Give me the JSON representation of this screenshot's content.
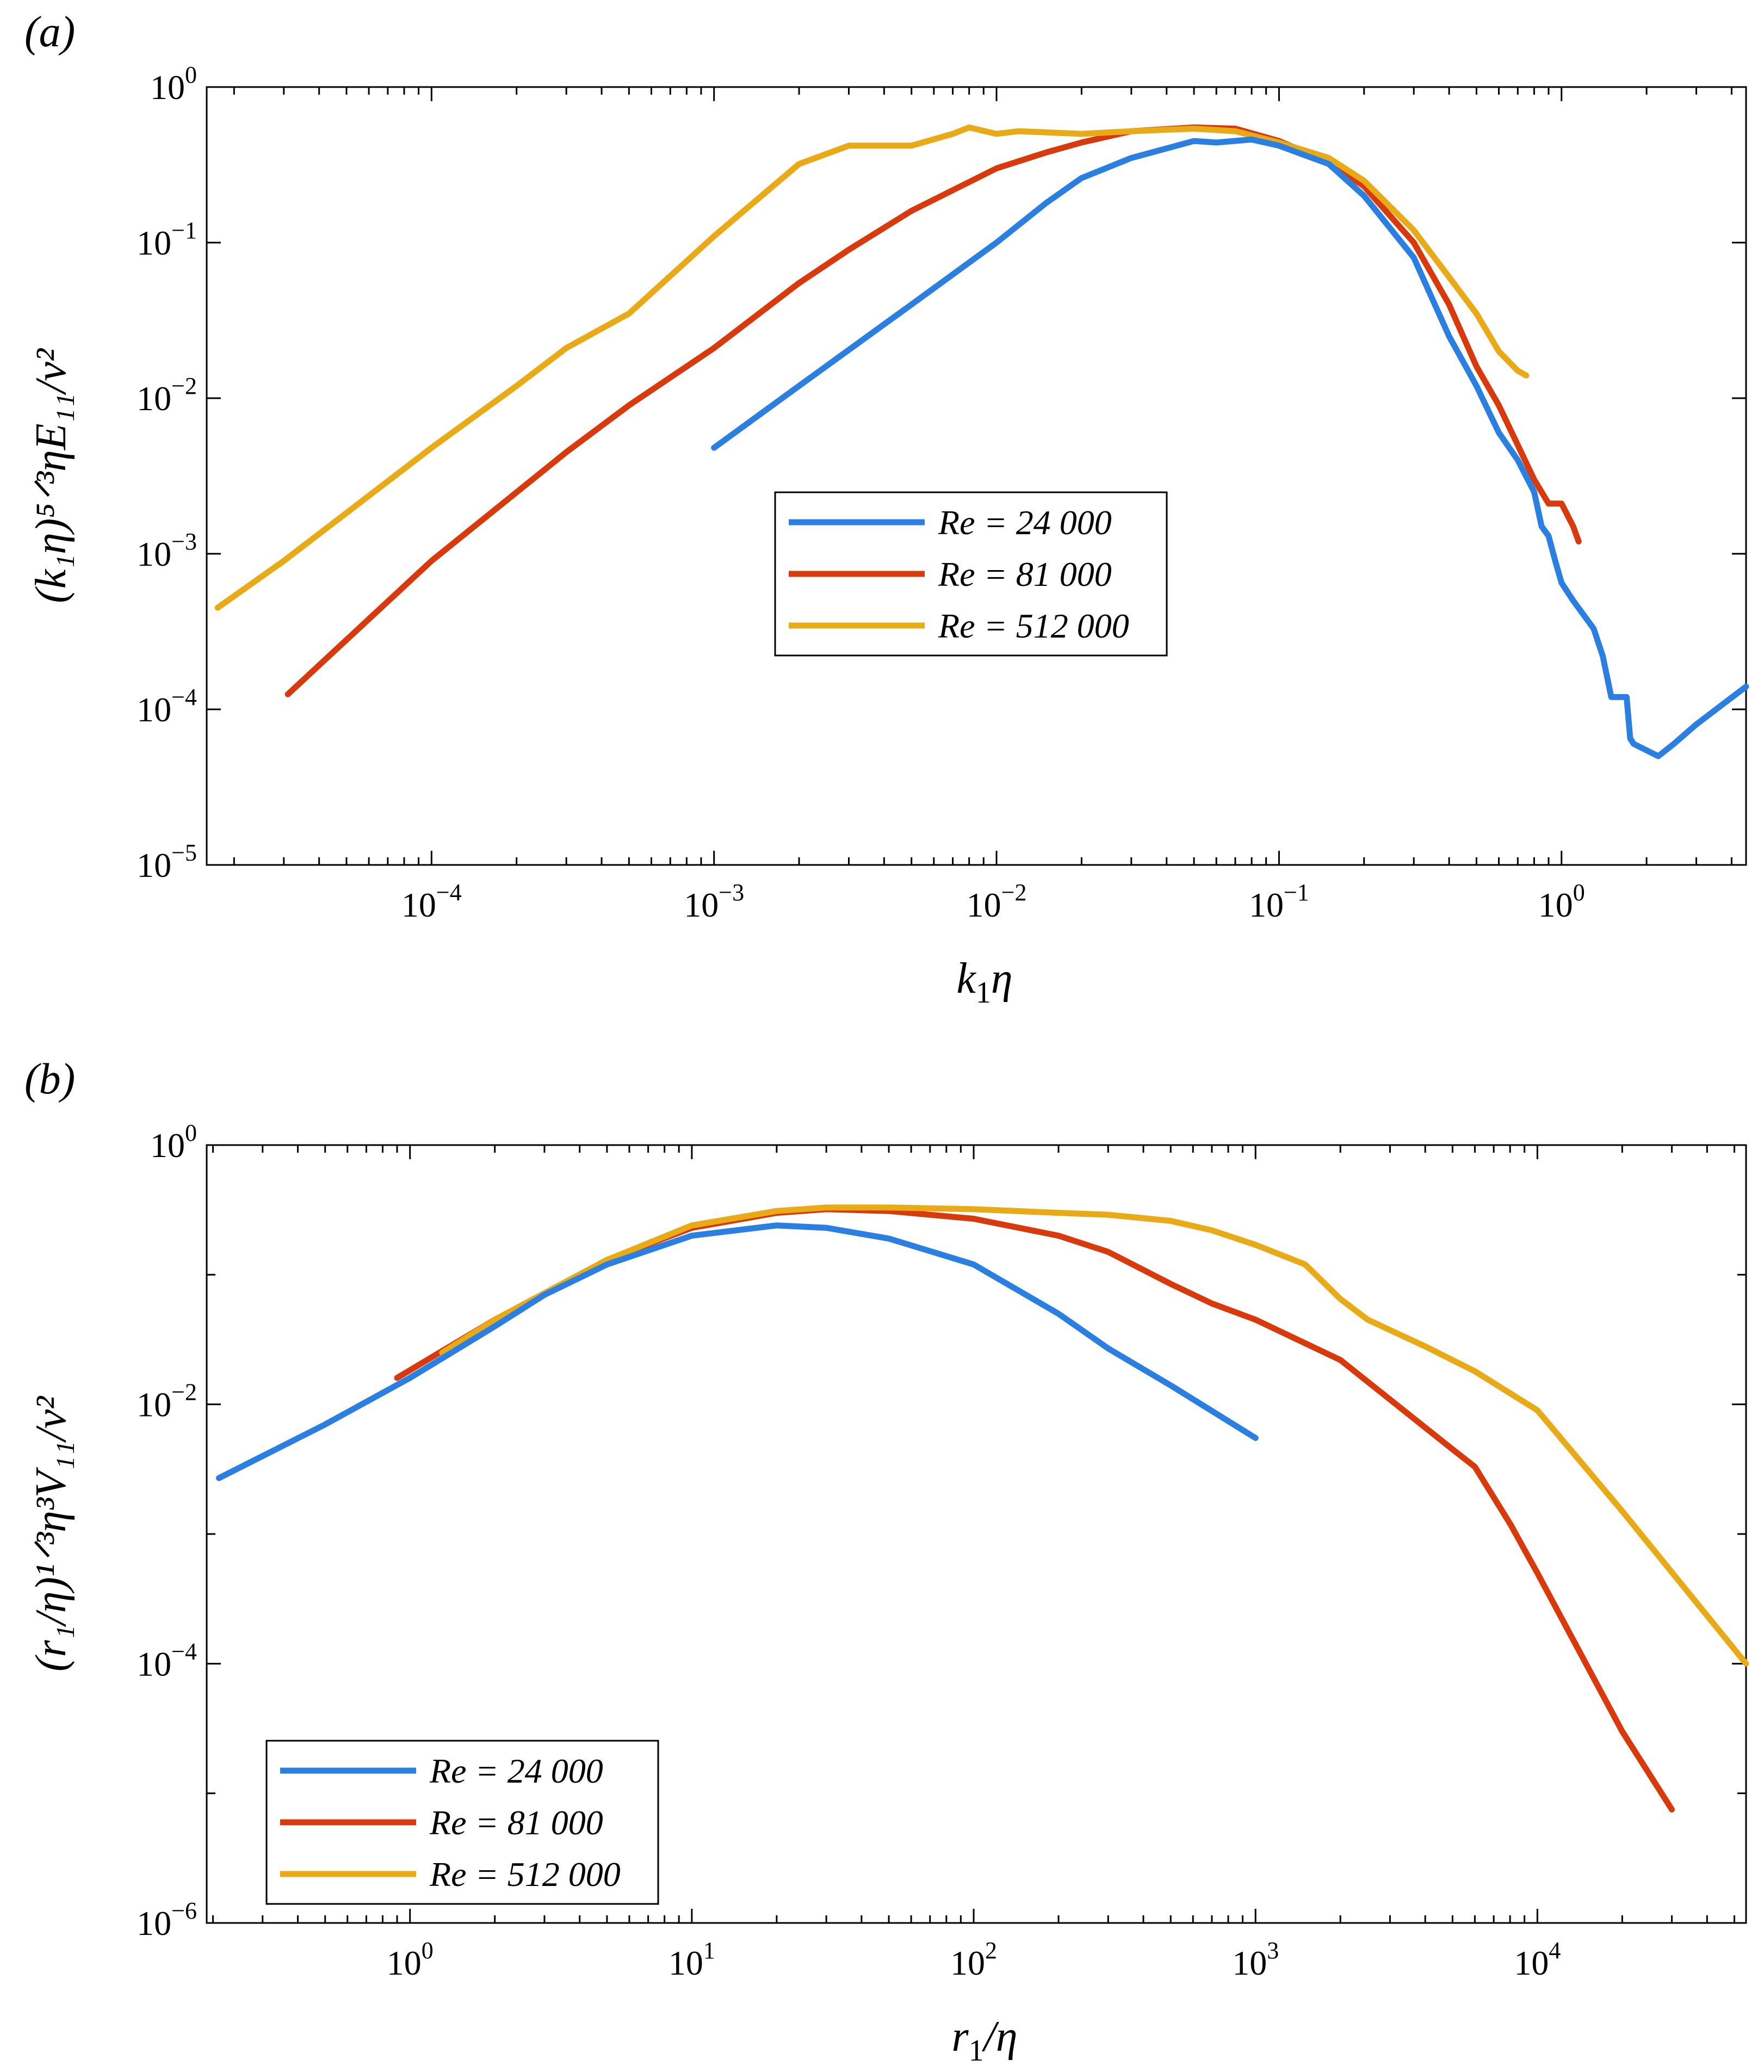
{
  "colors": {
    "blue": "#2a7fe0",
    "red": "#d93a0d",
    "yellow": "#e8aa16"
  },
  "chart_data": [
    {
      "type": "line",
      "panel": "(a)",
      "panel_letter": "a",
      "xscale": "log",
      "yscale": "log",
      "xlim": [
        1.6e-05,
        4.5
      ],
      "ylim": [
        1e-05,
        1
      ],
      "xticks": [
        {
          "v": 0.0001,
          "base": "10",
          "exp": "−4"
        },
        {
          "v": 0.001,
          "base": "10",
          "exp": "−3"
        },
        {
          "v": 0.01,
          "base": "10",
          "exp": "−2"
        },
        {
          "v": 0.1,
          "base": "10",
          "exp": "−1"
        },
        {
          "v": 1,
          "base": "10",
          "exp": "0"
        }
      ],
      "yticks": [
        {
          "v": 1e-05,
          "base": "10",
          "exp": "−5"
        },
        {
          "v": 0.0001,
          "base": "10",
          "exp": "−4"
        },
        {
          "v": 0.001,
          "base": "10",
          "exp": "−3"
        },
        {
          "v": 0.01,
          "base": "10",
          "exp": "−2"
        },
        {
          "v": 0.1,
          "base": "10",
          "exp": "−1"
        },
        {
          "v": 1,
          "base": "10",
          "exp": "0"
        }
      ],
      "xlabel": {
        "main": "k",
        "sub": "1",
        "tail": "η"
      },
      "ylabel": "(k₁η)⁵ᐟ³ηE₁₁/ν²",
      "legend": {
        "position": "center-right"
      },
      "series": [
        {
          "name": "Re = 24 000",
          "color": "blue",
          "points": [
            [
              0.001,
              0.0048
            ],
            [
              0.002,
              0.012
            ],
            [
              0.005,
              0.04
            ],
            [
              0.01,
              0.1
            ],
            [
              0.015,
              0.18
            ],
            [
              0.02,
              0.26
            ],
            [
              0.03,
              0.35
            ],
            [
              0.05,
              0.45
            ],
            [
              0.06,
              0.44
            ],
            [
              0.08,
              0.46
            ],
            [
              0.1,
              0.42
            ],
            [
              0.15,
              0.32
            ],
            [
              0.2,
              0.2
            ],
            [
              0.3,
              0.08
            ],
            [
              0.4,
              0.025
            ],
            [
              0.5,
              0.012
            ],
            [
              0.6,
              0.006
            ],
            [
              0.7,
              0.004
            ],
            [
              0.8,
              0.0025
            ],
            [
              0.85,
              0.0015
            ],
            [
              0.9,
              0.0013
            ],
            [
              0.95,
              0.0009
            ],
            [
              1.0,
              0.00065
            ],
            [
              1.1,
              0.0005
            ],
            [
              1.3,
              0.00033
            ],
            [
              1.4,
              0.00022
            ],
            [
              1.5,
              0.00012
            ],
            [
              1.7,
              0.00012
            ],
            [
              1.75,
              6.5e-05
            ],
            [
              1.8,
              6e-05
            ],
            [
              2.2,
              5e-05
            ],
            [
              2.5,
              6e-05
            ],
            [
              3.0,
              8e-05
            ],
            [
              4.5,
              0.00014
            ]
          ]
        },
        {
          "name": "Re = 81 000",
          "color": "red",
          "points": [
            [
              3.1e-05,
              0.000125
            ],
            [
              0.0001,
              0.0009
            ],
            [
              0.0003,
              0.0045
            ],
            [
              0.0005,
              0.009
            ],
            [
              0.001,
              0.021
            ],
            [
              0.002,
              0.055
            ],
            [
              0.003,
              0.09
            ],
            [
              0.005,
              0.16
            ],
            [
              0.01,
              0.3
            ],
            [
              0.015,
              0.38
            ],
            [
              0.02,
              0.44
            ],
            [
              0.03,
              0.52
            ],
            [
              0.05,
              0.55
            ],
            [
              0.07,
              0.54
            ],
            [
              0.1,
              0.45
            ],
            [
              0.15,
              0.33
            ],
            [
              0.2,
              0.23
            ],
            [
              0.3,
              0.1
            ],
            [
              0.4,
              0.04
            ],
            [
              0.5,
              0.016
            ],
            [
              0.6,
              0.009
            ],
            [
              0.7,
              0.005
            ],
            [
              0.8,
              0.003
            ],
            [
              0.9,
              0.0021
            ],
            [
              1.0,
              0.0021
            ],
            [
              1.1,
              0.0015
            ],
            [
              1.15,
              0.0012
            ]
          ]
        },
        {
          "name": "Re = 512 000",
          "color": "yellow",
          "points": [
            [
              1.75e-05,
              0.00045
            ],
            [
              3e-05,
              0.0009
            ],
            [
              0.0001,
              0.0048
            ],
            [
              0.0002,
              0.012
            ],
            [
              0.0003,
              0.021
            ],
            [
              0.0004,
              0.028
            ],
            [
              0.0005,
              0.035
            ],
            [
              0.001,
              0.11
            ],
            [
              0.002,
              0.32
            ],
            [
              0.003,
              0.42
            ],
            [
              0.005,
              0.42
            ],
            [
              0.007,
              0.5
            ],
            [
              0.008,
              0.55
            ],
            [
              0.01,
              0.5
            ],
            [
              0.012,
              0.52
            ],
            [
              0.02,
              0.5
            ],
            [
              0.03,
              0.52
            ],
            [
              0.05,
              0.54
            ],
            [
              0.07,
              0.52
            ],
            [
              0.1,
              0.44
            ],
            [
              0.15,
              0.35
            ],
            [
              0.2,
              0.25
            ],
            [
              0.3,
              0.12
            ],
            [
              0.4,
              0.06
            ],
            [
              0.5,
              0.035
            ],
            [
              0.6,
              0.02
            ],
            [
              0.7,
              0.015
            ],
            [
              0.75,
              0.014
            ]
          ]
        }
      ]
    },
    {
      "type": "line",
      "panel": "(b)",
      "panel_letter": "b",
      "xscale": "log",
      "yscale": "log",
      "xlim": [
        0.19,
        55000
      ],
      "ylim": [
        1e-06,
        1
      ],
      "xticks": [
        {
          "v": 1,
          "base": "10",
          "exp": "0"
        },
        {
          "v": 10,
          "base": "10",
          "exp": "1"
        },
        {
          "v": 100,
          "base": "10",
          "exp": "2"
        },
        {
          "v": 1000,
          "base": "10",
          "exp": "3"
        },
        {
          "v": 10000,
          "base": "10",
          "exp": "4"
        }
      ],
      "yticks": [
        {
          "v": 1e-06,
          "base": "10",
          "exp": "−6"
        },
        {
          "v": 0.0001,
          "base": "10",
          "exp": "−4"
        },
        {
          "v": 0.01,
          "base": "10",
          "exp": "−2"
        },
        {
          "v": 1,
          "base": "10",
          "exp": "0"
        }
      ],
      "xlabel": {
        "main": "r",
        "sub": "1",
        "tail": "/η"
      },
      "ylabel": "(r₁/η)¹ᐟ³η³V₁₁/ν²",
      "legend": {
        "position": "bottom-left"
      },
      "series": [
        {
          "name": "Re = 24 000",
          "color": "blue",
          "points": [
            [
              0.21,
              0.0027
            ],
            [
              0.5,
              0.007
            ],
            [
              1,
              0.016
            ],
            [
              2,
              0.04
            ],
            [
              3,
              0.07
            ],
            [
              5,
              0.12
            ],
            [
              10,
              0.2
            ],
            [
              20,
              0.24
            ],
            [
              30,
              0.23
            ],
            [
              50,
              0.19
            ],
            [
              100,
              0.12
            ],
            [
              200,
              0.05
            ],
            [
              300,
              0.027
            ],
            [
              500,
              0.014
            ],
            [
              1000,
              0.0055
            ]
          ]
        },
        {
          "name": "Re = 81 000",
          "color": "red",
          "points": [
            [
              0.9,
              0.016
            ],
            [
              2,
              0.045
            ],
            [
              5,
              0.13
            ],
            [
              10,
              0.23
            ],
            [
              20,
              0.3
            ],
            [
              30,
              0.32
            ],
            [
              50,
              0.31
            ],
            [
              100,
              0.27
            ],
            [
              200,
              0.2
            ],
            [
              300,
              0.15
            ],
            [
              500,
              0.085
            ],
            [
              700,
              0.06
            ],
            [
              1000,
              0.045
            ],
            [
              2000,
              0.022
            ],
            [
              5000,
              0.0045
            ],
            [
              6000,
              0.0033
            ],
            [
              8000,
              0.0012
            ],
            [
              10000,
              0.0005
            ],
            [
              20000,
              3e-05
            ],
            [
              30000,
              7.5e-06
            ]
          ]
        },
        {
          "name": "Re = 512 000",
          "color": "yellow",
          "points": [
            [
              1.3,
              0.025
            ],
            [
              2,
              0.045
            ],
            [
              5,
              0.13
            ],
            [
              10,
              0.24
            ],
            [
              20,
              0.31
            ],
            [
              30,
              0.33
            ],
            [
              50,
              0.33
            ],
            [
              100,
              0.32
            ],
            [
              200,
              0.3
            ],
            [
              300,
              0.29
            ],
            [
              500,
              0.26
            ],
            [
              700,
              0.22
            ],
            [
              1000,
              0.17
            ],
            [
              1500,
              0.12
            ],
            [
              2000,
              0.065
            ],
            [
              2500,
              0.045
            ],
            [
              4000,
              0.028
            ],
            [
              6000,
              0.018
            ],
            [
              10000,
              0.009
            ],
            [
              20000,
              0.0015
            ],
            [
              55000,
              0.0001
            ]
          ]
        }
      ]
    }
  ]
}
